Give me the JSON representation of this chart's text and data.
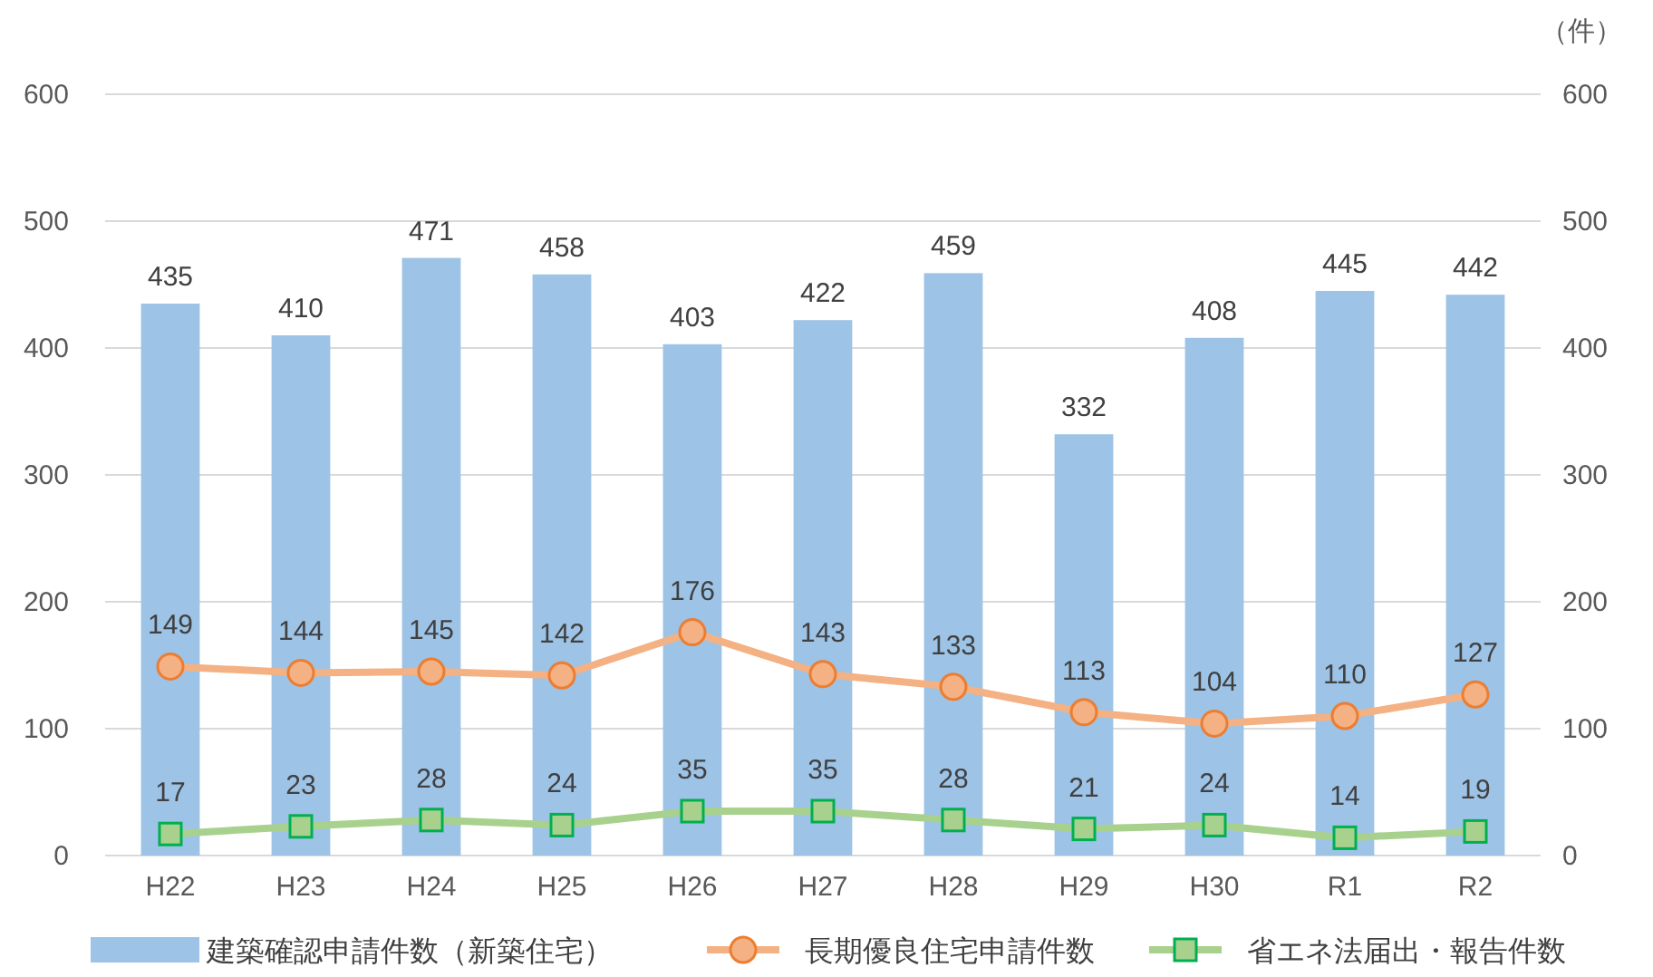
{
  "chart_data": {
    "type": "bar",
    "categories": [
      "H22",
      "H23",
      "H24",
      "H25",
      "H26",
      "H27",
      "H28",
      "H29",
      "H30",
      "R1",
      "R2"
    ],
    "series": [
      {
        "name": "建築確認申請件数（新築住宅）",
        "color": "#9dc3e6",
        "values": [
          435,
          410,
          471,
          458,
          403,
          422,
          459,
          332,
          408,
          445,
          442
        ]
      },
      {
        "name": "長期優良住宅申請件数",
        "type": "line",
        "color": "#f4b183",
        "marker": "circle",
        "values": [
          149,
          144,
          145,
          142,
          176,
          143,
          133,
          113,
          104,
          110,
          127
        ]
      },
      {
        "name": "省エネ法届出・報告件数",
        "type": "line",
        "color": "#a9d18e",
        "marker": "square",
        "values": [
          17,
          23,
          28,
          24,
          35,
          35,
          28,
          21,
          24,
          14,
          19
        ]
      }
    ],
    "ylim": [
      0,
      600
    ],
    "yticks": [
      0,
      100,
      200,
      300,
      400,
      500,
      600
    ],
    "y2lim": [
      0,
      600
    ],
    "y2ticks": [
      0,
      100,
      200,
      300,
      400,
      500,
      600
    ],
    "y2label": "（件）",
    "grid": "y",
    "legend": "bottom",
    "data_labels": true
  }
}
